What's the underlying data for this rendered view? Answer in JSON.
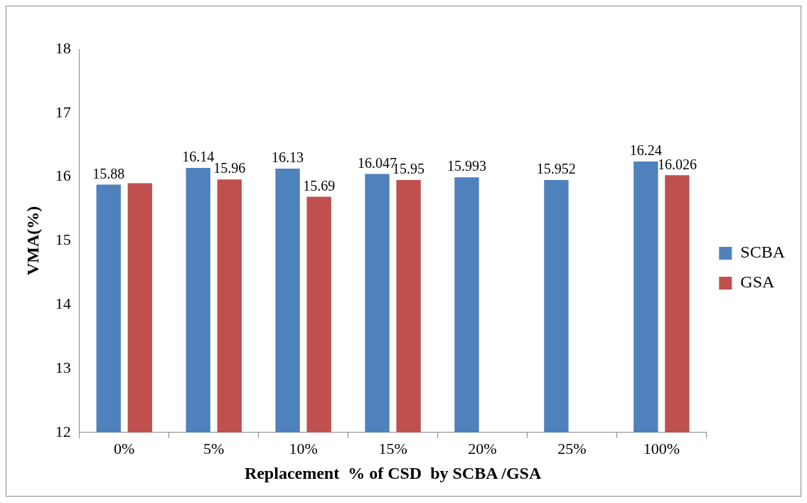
{
  "chart_data": {
    "type": "bar",
    "xlabel": "Replacement  % of CSD  by SCBA /GSA",
    "ylabel": "VMA(%)",
    "categories": [
      "0%",
      "5%",
      "10%",
      "15%",
      "20%",
      "25%",
      "100%"
    ],
    "series": [
      {
        "name": "SCBA",
        "color": "#4f81bd",
        "values": [
          15.88,
          16.14,
          16.13,
          16.047,
          15.993,
          15.952,
          16.24
        ],
        "value_labels": [
          "15.88",
          "16.14",
          "16.13",
          "16.047",
          "15.993",
          "15.952",
          "16.24"
        ]
      },
      {
        "name": "GSA",
        "color": "#c0504d",
        "values": [
          15.9,
          15.96,
          15.69,
          15.95,
          null,
          null,
          16.026
        ],
        "value_labels": [
          null,
          "15.96",
          "15.69",
          "15.95",
          null,
          null,
          "16.026"
        ]
      }
    ],
    "ylim": [
      12,
      18
    ],
    "yticks": [
      12,
      13,
      14,
      15,
      16,
      17,
      18
    ],
    "grid": false,
    "legend": "right"
  }
}
